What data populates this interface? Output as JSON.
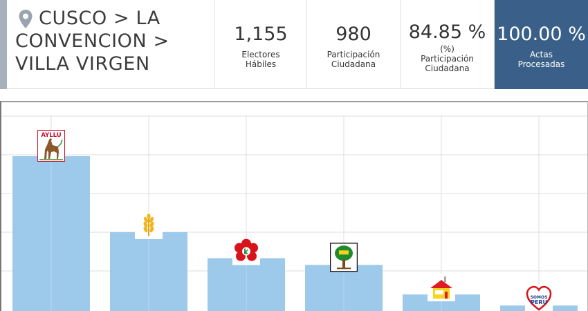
{
  "header": {
    "location": "CUSCO > LA CONVENCION > VILLA VIRGEN",
    "stats": [
      {
        "value": "1,155",
        "label": "Electores Hábiles"
      },
      {
        "value": "980",
        "label": "Participación Ciudadana"
      },
      {
        "value": "84.85 %",
        "label": "(%) Participación Ciudadana"
      },
      {
        "value": "100.00 %",
        "label": "Actas Procesadas"
      }
    ]
  },
  "colors": {
    "bar": "#9dc9ea",
    "highlight": "#3a6089",
    "grid": "#dddddd"
  },
  "chart_data": {
    "type": "bar",
    "ylim": [
      0,
      400
    ],
    "grid": true,
    "categories": [
      "AYLLU",
      "",
      "",
      "",
      "",
      "SOMOS PERU"
    ],
    "values": [
      393,
      200,
      134,
      117,
      42,
      14
    ],
    "party_icons": [
      "ayllu-logo",
      "wheat-logo",
      "red-flower-logo",
      "tree-logo",
      "house-logo",
      "somos-peru-logo"
    ]
  }
}
